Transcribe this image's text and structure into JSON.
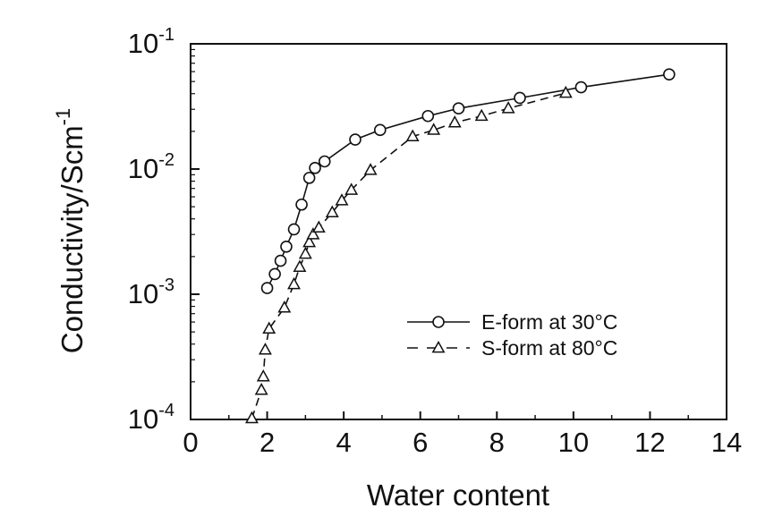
{
  "chart_data": {
    "type": "scatter",
    "xlabel": "Water content",
    "ylabel": "Conductivity/Scm",
    "ylabel_superscript": "-1",
    "xlim": [
      0,
      14
    ],
    "ylim": [
      0.0001,
      0.1
    ],
    "y_scale": "log",
    "x_ticks": [
      "0",
      "2",
      "4",
      "6",
      "8",
      "10",
      "12",
      "14"
    ],
    "y_ticks": [
      {
        "base": "10",
        "exp": "-4"
      },
      {
        "base": "10",
        "exp": "-3"
      },
      {
        "base": "10",
        "exp": "-2"
      },
      {
        "base": "10",
        "exp": "-1"
      }
    ],
    "grid": false,
    "legend_position": "bottom-right",
    "series": [
      {
        "name": "E-form at 30°C",
        "marker": "circle",
        "line": "solid",
        "points": [
          [
            2.0,
            0.00112
          ],
          [
            2.2,
            0.00145
          ],
          [
            2.35,
            0.00185
          ],
          [
            2.5,
            0.0024
          ],
          [
            2.7,
            0.0033
          ],
          [
            2.9,
            0.0052
          ],
          [
            3.1,
            0.0085
          ],
          [
            3.25,
            0.0102
          ],
          [
            3.5,
            0.0115
          ],
          [
            4.3,
            0.0172
          ],
          [
            4.95,
            0.0205
          ],
          [
            6.2,
            0.0265
          ],
          [
            7.0,
            0.0305
          ],
          [
            8.6,
            0.037
          ],
          [
            10.2,
            0.045
          ],
          [
            12.5,
            0.057
          ]
        ]
      },
      {
        "name": "S-form at 80°C",
        "marker": "triangle",
        "line": "dashed",
        "points": [
          [
            1.6,
            0.000102
          ],
          [
            1.85,
            0.000172
          ],
          [
            1.9,
            0.00022
          ],
          [
            1.95,
            0.00036
          ],
          [
            2.05,
            0.00053
          ],
          [
            2.45,
            0.00078
          ],
          [
            2.7,
            0.0012
          ],
          [
            2.85,
            0.00165
          ],
          [
            3.0,
            0.0021
          ],
          [
            3.1,
            0.0026
          ],
          [
            3.2,
            0.003
          ],
          [
            3.35,
            0.0034
          ],
          [
            3.7,
            0.0045
          ],
          [
            3.95,
            0.0056
          ],
          [
            4.2,
            0.0068
          ],
          [
            4.7,
            0.0098
          ],
          [
            5.8,
            0.0182
          ],
          [
            6.35,
            0.0205
          ],
          [
            6.9,
            0.0235
          ],
          [
            7.6,
            0.0265
          ],
          [
            8.3,
            0.0305
          ],
          [
            9.8,
            0.0405
          ]
        ]
      }
    ]
  }
}
